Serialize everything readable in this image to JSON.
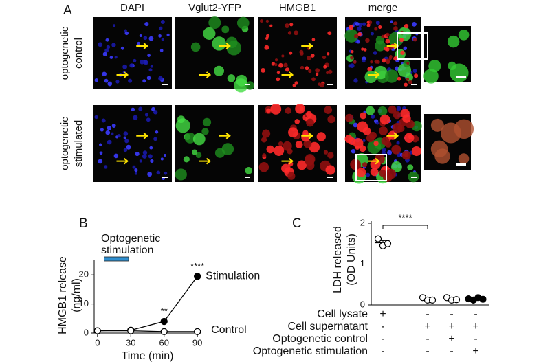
{
  "panel_a": {
    "label": "A",
    "columns": [
      "DAPI",
      "Vglut2-YFP",
      "HMGB1",
      "merge"
    ],
    "rows": [
      [
        "optogenetic",
        "control"
      ],
      [
        "optogenetic",
        "stimulated"
      ]
    ]
  },
  "chart_data": [
    {
      "type": "line",
      "panel_label": "B",
      "ylabel": [
        "HMGB1 release",
        "(ng/ml)"
      ],
      "xlabel": "Time (min)",
      "x": [
        0,
        30,
        60,
        90
      ],
      "series": [
        {
          "name": "Stimulation",
          "color": "#000000",
          "filled": true,
          "values": [
            0.8,
            1,
            4,
            19.5
          ]
        },
        {
          "name": "Control",
          "color": "#000000",
          "filled": false,
          "values": [
            0.8,
            0.8,
            0.5,
            0.5
          ]
        }
      ],
      "significance": [
        {
          "x": 60,
          "label": "**"
        },
        {
          "x": 90,
          "label": "****"
        }
      ],
      "stimulation": {
        "label": [
          "Optogenetic",
          "stimulation"
        ],
        "start": 6,
        "end": 28,
        "color": "#2f8fd0"
      },
      "xlim": [
        -3,
        93
      ],
      "xticks": [
        0,
        30,
        60,
        90
      ],
      "ylim": [
        0,
        25
      ],
      "yticks": [
        0,
        10,
        20
      ]
    },
    {
      "type": "dotplot",
      "panel_label": "C",
      "ylabel": [
        "LDH released",
        "(OD Units)"
      ],
      "groups": [
        {
          "filled": false,
          "values": [
            1.62,
            1.45,
            1.5
          ]
        },
        {
          "filled": false,
          "values": [
            0.18,
            0.12,
            0.12
          ]
        },
        {
          "filled": false,
          "values": [
            0.18,
            0.12,
            0.13
          ]
        },
        {
          "filled": true,
          "values": [
            0.15,
            0.12,
            0.18,
            0.14
          ]
        }
      ],
      "significance": {
        "groups": [
          0,
          1
        ],
        "label": "****"
      },
      "ylim": [
        0,
        2.05
      ],
      "yticks": [
        0,
        1,
        2
      ],
      "conditions": [
        {
          "label": "Cell lysate",
          "marks": [
            "+",
            "-",
            "-",
            "-"
          ]
        },
        {
          "label": "Cell supernatant",
          "marks": [
            "-",
            "+",
            "+",
            "+"
          ]
        },
        {
          "label": "Optogenetic control",
          "marks": [
            "-",
            "-",
            "+",
            "-"
          ]
        },
        {
          "label": "Optogenetic stimulation",
          "marks": [
            "-",
            "-",
            "-",
            "+"
          ]
        }
      ]
    }
  ]
}
